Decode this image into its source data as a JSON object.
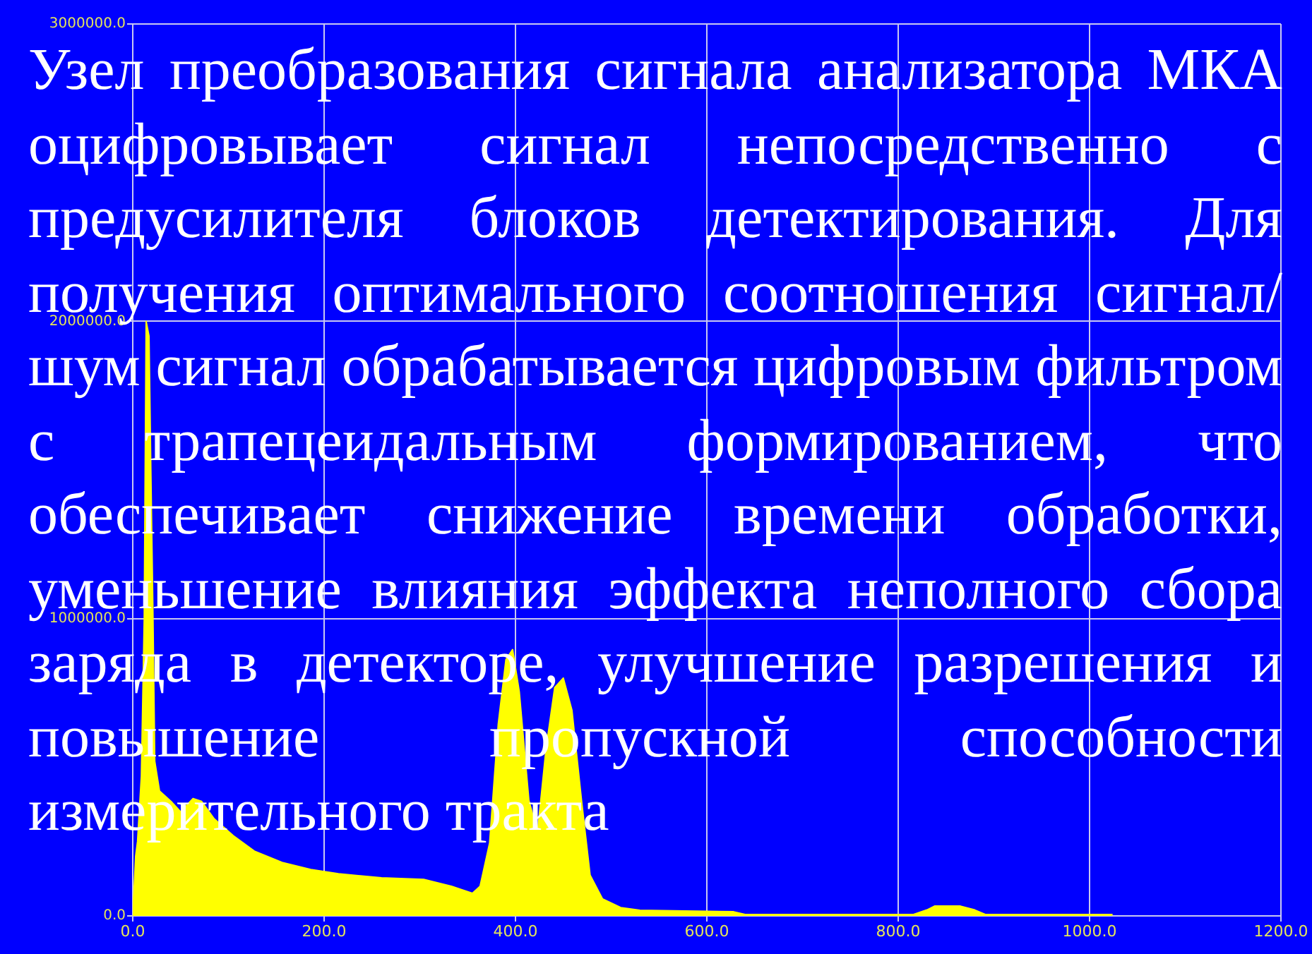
{
  "chart_data": {
    "type": "area",
    "x": [
      0,
      3,
      5,
      9,
      12,
      14,
      17,
      19,
      21,
      23,
      28,
      40,
      50,
      63,
      72,
      85,
      105,
      127,
      156,
      186,
      215,
      260,
      304,
      333,
      355,
      363,
      373,
      382,
      390,
      397,
      404,
      414,
      423,
      432,
      441,
      450,
      459,
      469,
      478,
      491,
      510,
      530,
      628,
      640,
      700,
      816,
      830,
      838,
      865,
      880,
      891,
      1000,
      1024
    ],
    "values": [
      0,
      200000,
      250000,
      470000,
      1000000,
      2000000,
      1950000,
      1480000,
      1040000,
      520000,
      420000,
      385000,
      350000,
      395000,
      385000,
      327000,
      270000,
      218000,
      180000,
      156000,
      142000,
      128000,
      123000,
      100000,
      76000,
      100000,
      246000,
      645000,
      862000,
      896000,
      753000,
      389000,
      280000,
      564000,
      768000,
      800000,
      692000,
      389000,
      137000,
      57000,
      28000,
      19000,
      14000,
      5000,
      5000,
      5000,
      20000,
      33000,
      33000,
      20000,
      5000,
      5000,
      5000
    ],
    "color": "#ffff00",
    "xlim": [
      0,
      1200
    ],
    "xticks": [
      {
        "value": 0,
        "label": "0.0"
      },
      {
        "value": 200,
        "label": "200.0"
      },
      {
        "value": 400,
        "label": "400.0"
      },
      {
        "value": 600,
        "label": "600.0"
      },
      {
        "value": 800,
        "label": "800.0"
      },
      {
        "value": 1000,
        "label": "1000.0"
      },
      {
        "value": 1200,
        "label": "1200.0"
      }
    ],
    "ylim": [
      0,
      3000000
    ],
    "yticks": [
      {
        "value": 0,
        "label": "0.0"
      },
      {
        "value": 1000000,
        "label": "1000000.0"
      },
      {
        "value": 2000000,
        "label": "2000000.0"
      },
      {
        "value": 3000000,
        "label": "3000000.0"
      }
    ],
    "grid": true,
    "annotations": [
      "Узел преобразования сигнала анализатора МКА оцифровывает сигнал непосредственно с предусилителя блоков детектирования. Для получения оптимального соотношения сигнал/шум сигнал обрабатывается цифровым фильтром с трапецеидальным формированием, что обеспечивает снижение времени обработки, уменьшение влияния эффекта неполного сбора заряда в детекторе, улучшение разрешения и повышение пропускной способности измерительного тракта"
    ]
  }
}
